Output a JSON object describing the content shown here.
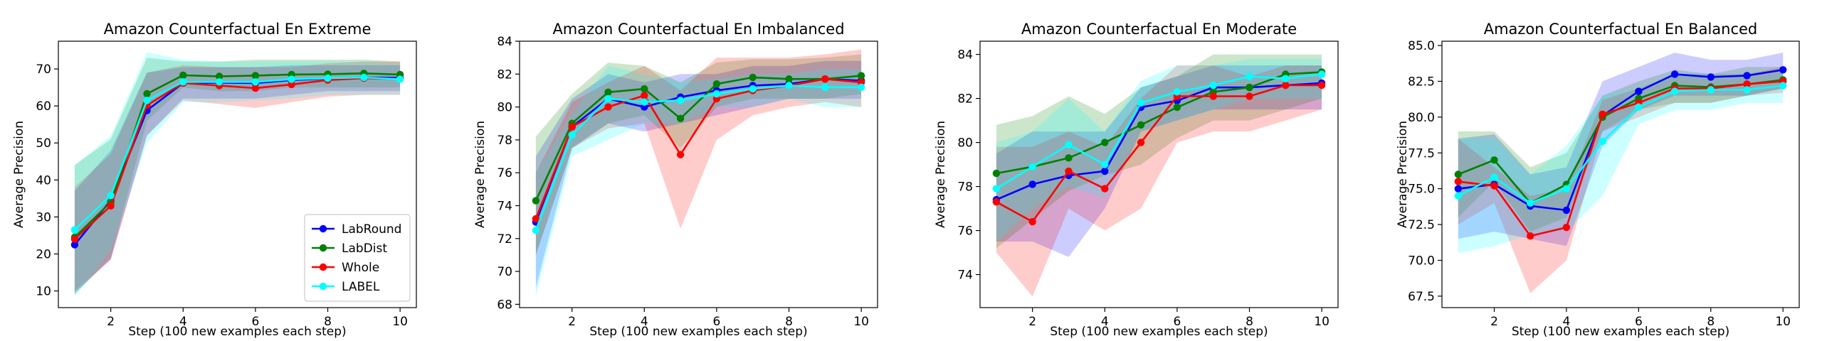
{
  "chart_data": [
    {
      "type": "line",
      "title": "Amazon Counterfactual En Extreme",
      "xlabel": "Step (100 new examples each step)",
      "ylabel": "Average Precision",
      "x": [
        1,
        2,
        3,
        4,
        5,
        6,
        7,
        8,
        9,
        10
      ],
      "xticks": [
        2,
        4,
        6,
        8,
        10
      ],
      "xlim": [
        0.55,
        10.45
      ],
      "ylim": [
        5.5,
        77.5
      ],
      "yticks": [
        10,
        20,
        30,
        40,
        50,
        60,
        70
      ],
      "ytick_labels": [
        "10",
        "20",
        "30",
        "40",
        "50",
        "60",
        "70"
      ],
      "legend": "lower-right",
      "series": [
        {
          "name": "LabRound",
          "color": "#0000ff",
          "values": [
            22.5,
            34.5,
            58.8,
            66.2,
            66.3,
            66.2,
            67.0,
            67.4,
            67.7,
            67.6
          ],
          "lower": [
            9.5,
            18.5,
            52,
            62,
            62,
            62,
            63,
            64,
            64,
            64
          ],
          "upper": [
            37,
            48,
            69,
            70.5,
            70.5,
            70.5,
            71,
            71,
            71,
            71
          ]
        },
        {
          "name": "LabDist",
          "color": "#008000",
          "values": [
            24.5,
            34.0,
            63.3,
            68.3,
            68.0,
            68.2,
            68.5,
            68.6,
            68.8,
            68.5
          ],
          "lower": [
            9,
            19,
            56,
            65,
            64,
            64,
            65,
            65,
            65,
            65
          ],
          "upper": [
            44,
            51,
            73,
            72,
            72,
            72.5,
            72.5,
            72.5,
            72.5,
            72
          ]
        },
        {
          "name": "Whole",
          "color": "#ff0000",
          "values": [
            24.0,
            33.0,
            60.2,
            66.2,
            65.5,
            64.8,
            65.8,
            67.0,
            67.5,
            67.3
          ],
          "lower": [
            10,
            18.5,
            52,
            61.5,
            60.5,
            59.5,
            61,
            62.5,
            63,
            63
          ],
          "upper": [
            38,
            47,
            69,
            71,
            70.5,
            70.5,
            70.5,
            71.5,
            72,
            72
          ]
        },
        {
          "name": "LABEL",
          "color": "#00ffff",
          "values": [
            26.5,
            35.8,
            61.5,
            66.5,
            66.5,
            66.5,
            67.2,
            67.5,
            67.7,
            67.2
          ],
          "lower": [
            8.5,
            21,
            50,
            61,
            61,
            61.5,
            62,
            63,
            63,
            63
          ],
          "upper": [
            44,
            52,
            74.5,
            72.5,
            72,
            72,
            72,
            72,
            72,
            71.5
          ]
        }
      ]
    },
    {
      "type": "line",
      "title": "Amazon Counterfactual En Imbalanced",
      "xlabel": "Step (100 new examples each step)",
      "ylabel": "Average Precision",
      "x": [
        1,
        2,
        3,
        4,
        5,
        6,
        7,
        8,
        9,
        10
      ],
      "xticks": [
        2,
        4,
        6,
        8,
        10
      ],
      "xlim": [
        0.55,
        10.45
      ],
      "ylim": [
        67.8,
        84.0
      ],
      "yticks": [
        68,
        70,
        72,
        74,
        76,
        78,
        80,
        82,
        84
      ],
      "ytick_labels": [
        "68",
        "70",
        "72",
        "74",
        "76",
        "78",
        "80",
        "82",
        "84"
      ],
      "legend": "none",
      "series": [
        {
          "name": "LabRound",
          "color": "#0000ff",
          "values": [
            73.0,
            78.8,
            80.5,
            80.0,
            80.6,
            81.0,
            81.3,
            81.4,
            81.7,
            81.6
          ],
          "lower": [
            69,
            77.5,
            79,
            78.5,
            79,
            79.5,
            80,
            80.5,
            80.5,
            80.5
          ],
          "upper": [
            77,
            80.5,
            82,
            81.5,
            82,
            82,
            82.5,
            82.5,
            82.8,
            82.8
          ]
        },
        {
          "name": "LabDist",
          "color": "#008000",
          "values": [
            74.3,
            79.0,
            80.9,
            81.1,
            79.3,
            81.4,
            81.8,
            81.7,
            81.7,
            81.9
          ],
          "lower": [
            71,
            77.5,
            79,
            79.5,
            77.5,
            80,
            80.5,
            80.5,
            80.5,
            80.8
          ],
          "upper": [
            78.2,
            80.8,
            82.7,
            82.5,
            81.5,
            82.7,
            82.9,
            82.9,
            83,
            83.2
          ]
        },
        {
          "name": "Whole",
          "color": "#ff0000",
          "values": [
            73.2,
            78.8,
            80.0,
            80.7,
            77.1,
            80.5,
            81.0,
            81.3,
            81.7,
            81.5
          ],
          "lower": [
            71,
            77.5,
            78.7,
            79,
            72.6,
            78,
            79.5,
            80,
            80.3,
            80
          ],
          "upper": [
            76,
            80.3,
            81.5,
            82.5,
            81,
            83,
            83,
            83,
            83.2,
            83.5
          ]
        },
        {
          "name": "LABEL",
          "color": "#00ffff",
          "values": [
            72.5,
            78.3,
            80.5,
            80.3,
            80.4,
            80.8,
            81.1,
            81.3,
            81.2,
            81.2
          ],
          "lower": [
            68.5,
            77,
            78,
            79,
            79,
            80,
            80,
            80.5,
            80,
            80
          ],
          "upper": [
            76,
            79.6,
            82.5,
            82,
            81.5,
            81.7,
            82,
            82,
            82.3,
            82.3
          ]
        }
      ]
    },
    {
      "type": "line",
      "title": "Amazon Counterfactual En Moderate",
      "xlabel": "Step (100 new examples each step)",
      "ylabel": "Average Precision",
      "x": [
        1,
        2,
        3,
        4,
        5,
        6,
        7,
        8,
        9,
        10
      ],
      "xticks": [
        2,
        4,
        6,
        8,
        10
      ],
      "xlim": [
        0.55,
        10.45
      ],
      "ylim": [
        72.5,
        84.6
      ],
      "yticks": [
        74,
        76,
        78,
        80,
        82,
        84
      ],
      "ytick_labels": [
        "74",
        "76",
        "78",
        "80",
        "82",
        "84"
      ],
      "legend": "none",
      "series": [
        {
          "name": "LabRound",
          "color": "#0000ff",
          "values": [
            77.4,
            78.1,
            78.5,
            78.7,
            81.6,
            81.9,
            82.5,
            82.5,
            82.6,
            82.7
          ],
          "lower": [
            75.5,
            75.5,
            74.8,
            77,
            80.5,
            81,
            81.5,
            81.5,
            81.5,
            81.5
          ],
          "upper": [
            79.5,
            80.5,
            80.5,
            80.5,
            82.5,
            83,
            83.5,
            83.5,
            83.5,
            83.5
          ]
        },
        {
          "name": "LabDist",
          "color": "#008000",
          "values": [
            78.6,
            78.9,
            79.3,
            80.0,
            80.8,
            81.6,
            82.3,
            82.5,
            83.1,
            83.2
          ],
          "lower": [
            75.2,
            76.5,
            77.8,
            78.5,
            79,
            80.2,
            81,
            81,
            81.5,
            82
          ],
          "upper": [
            80.8,
            81.2,
            82.1,
            81.3,
            82.5,
            83,
            84,
            84,
            84,
            84
          ]
        },
        {
          "name": "Whole",
          "color": "#ff0000",
          "values": [
            77.3,
            76.4,
            78.7,
            77.9,
            80.0,
            82.1,
            82.1,
            82.1,
            82.6,
            82.6
          ],
          "lower": [
            75,
            73,
            77,
            76,
            77,
            80,
            80.5,
            80.5,
            81,
            81.5
          ],
          "upper": [
            79.8,
            79.8,
            80.5,
            79.8,
            82,
            83.5,
            83.5,
            83,
            83.5,
            83.5
          ]
        },
        {
          "name": "LABEL",
          "color": "#00ffff",
          "values": [
            77.9,
            78.9,
            79.9,
            79.0,
            81.8,
            82.3,
            82.6,
            83.0,
            82.9,
            83.1
          ],
          "lower": [
            75.5,
            77,
            78,
            77.5,
            80.5,
            81,
            81.5,
            82,
            82,
            82
          ],
          "upper": [
            80,
            80.5,
            82,
            80.5,
            82.8,
            83.5,
            83.5,
            83.8,
            83.8,
            83.8
          ]
        }
      ]
    },
    {
      "type": "line",
      "title": "Amazon Counterfactual En Balanced",
      "xlabel": "Step (100 new examples each step)",
      "ylabel": "Average Precision",
      "x": [
        1,
        2,
        3,
        4,
        5,
        6,
        7,
        8,
        9,
        10
      ],
      "xticks": [
        2,
        4,
        6,
        8,
        10
      ],
      "xlim": [
        0.55,
        10.45
      ],
      "ylim": [
        66.7,
        85.3
      ],
      "yticks": [
        67.5,
        70.0,
        72.5,
        75.0,
        77.5,
        80.0,
        82.5,
        85.0
      ],
      "ytick_labels": [
        "67.5",
        "70.0",
        "72.5",
        "75.0",
        "77.5",
        "80.0",
        "82.5",
        "85.0"
      ],
      "legend": "none",
      "series": [
        {
          "name": "LabRound",
          "color": "#0000ff",
          "values": [
            75.0,
            75.3,
            73.8,
            73.5,
            80.1,
            81.8,
            83.0,
            82.8,
            82.9,
            83.3
          ],
          "lower": [
            71.5,
            72,
            71.5,
            71,
            78,
            80.5,
            81.5,
            81.5,
            81.5,
            82
          ],
          "upper": [
            78.5,
            78.8,
            76,
            76.5,
            82.5,
            83.5,
            84.5,
            84,
            84,
            84.5
          ]
        },
        {
          "name": "LabDist",
          "color": "#008000",
          "values": [
            76.0,
            77.0,
            74.0,
            75.3,
            80.0,
            81.3,
            82.2,
            82.1,
            82.3,
            82.6
          ],
          "lower": [
            73,
            75.5,
            72,
            73,
            79,
            80.5,
            81,
            81,
            81.5,
            82
          ],
          "upper": [
            79,
            79,
            76.5,
            77.5,
            81.5,
            82.5,
            83.3,
            83,
            83.5,
            83.5
          ]
        },
        {
          "name": "Whole",
          "color": "#ff0000",
          "values": [
            75.5,
            75.2,
            71.7,
            72.3,
            80.2,
            81.0,
            82.0,
            82.0,
            82.3,
            82.5
          ],
          "lower": [
            72.5,
            74,
            67.7,
            70,
            79,
            80,
            81,
            81,
            81.5,
            81.7
          ],
          "upper": [
            78.5,
            76.5,
            74.5,
            75,
            81.2,
            82,
            83,
            83,
            83,
            83.5
          ]
        },
        {
          "name": "LABEL",
          "color": "#00ffff",
          "values": [
            74.5,
            75.8,
            74.0,
            75.0,
            78.3,
            80.7,
            81.8,
            81.9,
            81.9,
            82.2
          ],
          "lower": [
            70.5,
            71,
            71.8,
            72,
            74.5,
            79.5,
            80.5,
            80.5,
            81,
            81
          ],
          "upper": [
            78.5,
            78.5,
            76,
            78,
            81.5,
            82,
            83,
            83,
            83,
            83.2
          ]
        }
      ]
    }
  ]
}
